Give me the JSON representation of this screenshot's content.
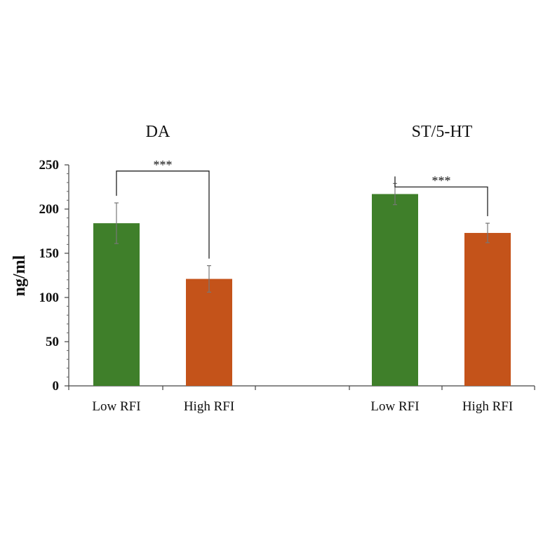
{
  "chart_data": {
    "type": "bar",
    "ylabel": "ng/ml",
    "ylim": [
      0,
      250
    ],
    "yticks": [
      "0",
      "50",
      "100",
      "150",
      "200",
      "250"
    ],
    "minor_ticks": true,
    "grid": false,
    "legend": "none",
    "panels": [
      {
        "title": "DA",
        "categories": [
          "Low RFI",
          "High RFI"
        ],
        "values": [
          184,
          121
        ],
        "errors": [
          23,
          15
        ],
        "colors": [
          "#3f7f2a",
          "#c4531a"
        ],
        "significance": "***"
      },
      {
        "title": "ST/5-HT",
        "categories": [
          "Low RFI",
          "High RFI"
        ],
        "values": [
          217,
          173
        ],
        "errors": [
          12,
          11
        ],
        "colors": [
          "#3f7f2a",
          "#c4531a"
        ],
        "significance": "***"
      }
    ]
  }
}
